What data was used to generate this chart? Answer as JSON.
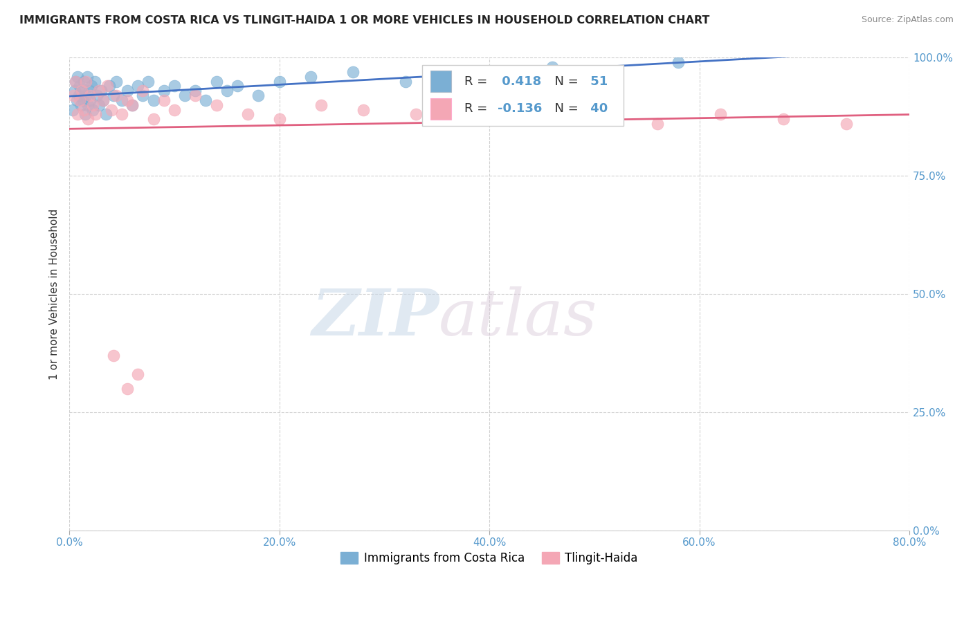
{
  "title": "IMMIGRANTS FROM COSTA RICA VS TLINGIT-HAIDA 1 OR MORE VEHICLES IN HOUSEHOLD CORRELATION CHART",
  "source": "Source: ZipAtlas.com",
  "ylabel": "1 or more Vehicles in Household",
  "xlim": [
    0.0,
    80.0
  ],
  "ylim": [
    0.0,
    100.0
  ],
  "xtick_labels": [
    "0.0%",
    "20.0%",
    "40.0%",
    "60.0%",
    "80.0%"
  ],
  "xtick_vals": [
    0,
    20,
    40,
    60,
    80
  ],
  "ytick_labels": [
    "0.0%",
    "25.0%",
    "50.0%",
    "75.0%",
    "100.0%"
  ],
  "ytick_vals": [
    0,
    25,
    50,
    75,
    100
  ],
  "blue_R": 0.418,
  "blue_N": 51,
  "pink_R": -0.136,
  "pink_N": 40,
  "blue_color": "#7BAFD4",
  "pink_color": "#F4A7B5",
  "blue_line_color": "#4472C4",
  "pink_line_color": "#E06080",
  "watermark_zip": "ZIP",
  "watermark_atlas": "atlas",
  "legend_label_blue": "Immigrants from Costa Rica",
  "legend_label_pink": "Tlingit-Haida",
  "blue_x": [
    0.3,
    0.5,
    0.6,
    0.7,
    0.8,
    0.9,
    1.0,
    1.1,
    1.2,
    1.3,
    1.4,
    1.5,
    1.6,
    1.7,
    1.8,
    1.9,
    2.0,
    2.1,
    2.2,
    2.4,
    2.6,
    2.8,
    3.0,
    3.2,
    3.5,
    3.8,
    4.2,
    4.5,
    5.0,
    5.5,
    6.0,
    6.5,
    7.0,
    7.5,
    8.0,
    9.0,
    10.0,
    11.0,
    12.0,
    13.0,
    14.0,
    15.0,
    16.0,
    18.0,
    20.0,
    23.0,
    27.0,
    32.0,
    38.0,
    46.0,
    58.0
  ],
  "blue_y": [
    89,
    93,
    95,
    91,
    96,
    92,
    94,
    90,
    93,
    91,
    95,
    88,
    92,
    96,
    90,
    93,
    91,
    94,
    89,
    95,
    92,
    90,
    93,
    91,
    88,
    94,
    92,
    95,
    91,
    93,
    90,
    94,
    92,
    95,
    91,
    93,
    94,
    92,
    93,
    91,
    95,
    93,
    94,
    92,
    95,
    96,
    97,
    95,
    96,
    98,
    99
  ],
  "pink_x": [
    0.4,
    0.6,
    0.8,
    1.0,
    1.2,
    1.4,
    1.6,
    1.8,
    2.0,
    2.2,
    2.5,
    2.8,
    3.2,
    3.6,
    4.0,
    4.5,
    5.0,
    5.5,
    6.0,
    7.0,
    8.0,
    9.0,
    10.0,
    12.0,
    14.0,
    17.0,
    20.0,
    24.0,
    28.0,
    33.0,
    38.0,
    44.0,
    50.0,
    56.0,
    62.0,
    68.0,
    74.0,
    5.5,
    6.5,
    4.2
  ],
  "pink_y": [
    92,
    95,
    88,
    91,
    93,
    89,
    95,
    87,
    92,
    90,
    88,
    93,
    91,
    94,
    89,
    92,
    88,
    91,
    90,
    93,
    87,
    91,
    89,
    92,
    90,
    88,
    87,
    90,
    89,
    88,
    87,
    89,
    87,
    86,
    88,
    87,
    86,
    30,
    33,
    37
  ]
}
